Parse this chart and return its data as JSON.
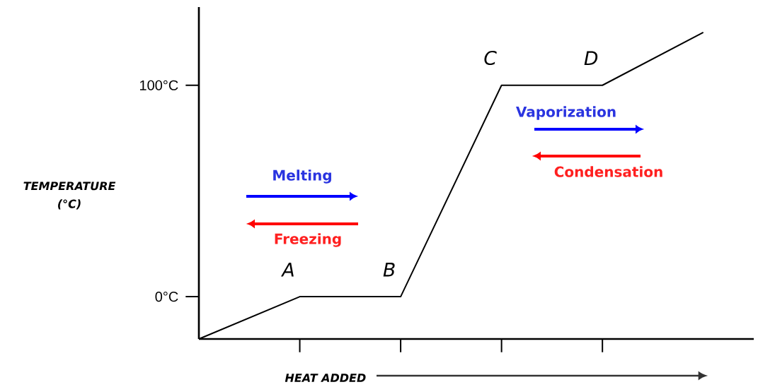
{
  "chart_data": {
    "type": "line",
    "xlabel": "HEAT ADDED",
    "ylabel": "TEMPERATURE (°C)",
    "categories": [
      null,
      null,
      null,
      null,
      null,
      null
    ],
    "values": [
      -20,
      0,
      0,
      100,
      100,
      125
    ],
    "color": "#000000",
    "marker": "none",
    "ylim": [
      -20,
      137
    ],
    "yticks": [
      {
        "value": 0,
        "label": "0°C"
      },
      {
        "value": 100,
        "label": "100°C"
      }
    ],
    "annotations": [
      "A",
      "B",
      "C",
      "D",
      "Melting",
      "Freezing",
      "Vaporization",
      "Condensation"
    ]
  }
}
